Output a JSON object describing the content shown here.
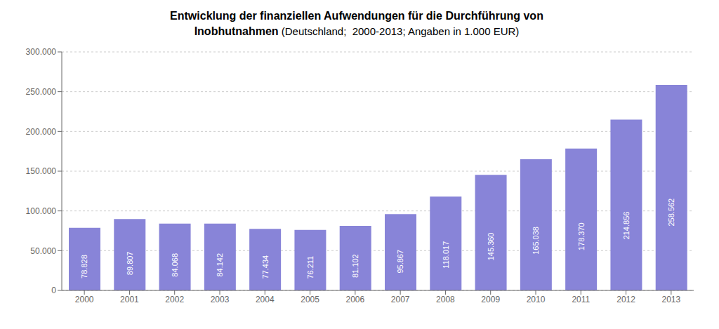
{
  "chart_data": {
    "type": "bar",
    "title": "Entwicklung der finanziellen Aufwendungen für die Durchführung von Inobhutnahmen",
    "subtitle": " (Deutschland;  2000-2013; Angaben in 1.000 EUR)",
    "categories": [
      "2000",
      "2001",
      "2002",
      "2003",
      "2004",
      "2005",
      "2006",
      "2007",
      "2008",
      "2009",
      "2010",
      "2011",
      "2012",
      "2013"
    ],
    "values": [
      78828,
      89807,
      84068,
      84142,
      77434,
      76211,
      81102,
      95867,
      118017,
      145360,
      165038,
      178370,
      214856,
      258562
    ],
    "value_labels": [
      "78.828",
      "89.807",
      "84.068",
      "84.142",
      "77.434",
      "76.211",
      "81.102",
      "95.867",
      "118.017",
      "145.360",
      "165.038",
      "178.370",
      "214.856",
      "258.562"
    ],
    "data_labels": true,
    "color": "#8884d8",
    "ylim": [
      0,
      300000
    ],
    "yticks": [
      0,
      {
        "value": 50000,
        "label": "50.000"
      },
      {
        "value": 100000,
        "label": "100.000"
      },
      {
        "value": 150000,
        "label": "150.000"
      },
      {
        "value": 200000,
        "label": "200.000"
      },
      {
        "value": 250000,
        "label": "250.000"
      },
      {
        "value": 300000,
        "label": "300.000"
      }
    ],
    "grid": true
  }
}
